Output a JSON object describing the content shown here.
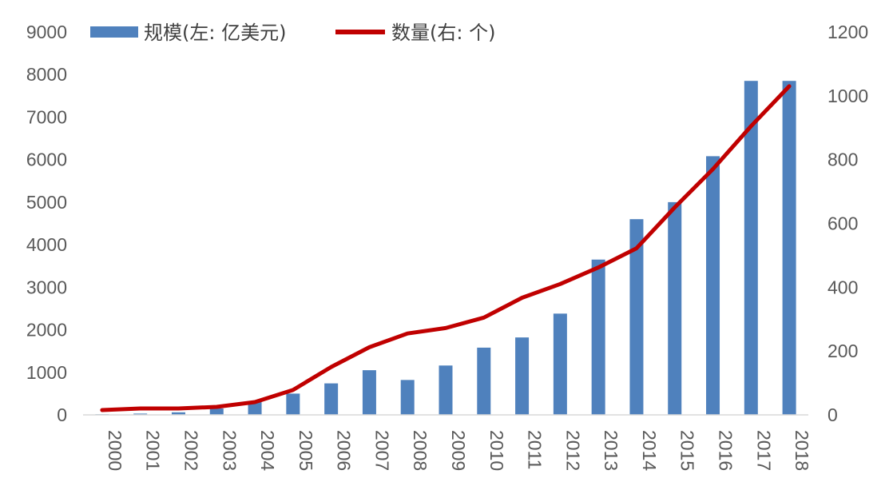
{
  "chart_data": {
    "type": "bar",
    "title": "",
    "xlabel": "",
    "ylabel": "",
    "categories": [
      "2000",
      "2001",
      "2002",
      "2003",
      "2004",
      "2005",
      "2006",
      "2007",
      "2008",
      "2009",
      "2010",
      "2011",
      "2012",
      "2013",
      "2014",
      "2015",
      "2016",
      "2017",
      "2018"
    ],
    "series": [
      {
        "name": "规模(左: 亿美元)",
        "type": "bar",
        "axis": "left",
        "color": "#4F81BD",
        "values": [
          15,
          30,
          60,
          150,
          300,
          500,
          740,
          1050,
          820,
          1160,
          1580,
          1820,
          2380,
          3650,
          4600,
          5000,
          6080,
          7850,
          7850
        ]
      },
      {
        "name": "数量(右: 个)",
        "type": "line",
        "axis": "right",
        "color": "#C00000",
        "values": [
          15,
          20,
          20,
          25,
          40,
          78,
          150,
          212,
          255,
          272,
          305,
          367,
          410,
          462,
          522,
          650,
          770,
          905,
          1030
        ]
      }
    ],
    "y_left": {
      "min": 0,
      "max": 9000,
      "ticks": [
        "0",
        "1000",
        "2000",
        "3000",
        "4000",
        "5000",
        "6000",
        "7000",
        "8000",
        "9000"
      ]
    },
    "y_right": {
      "min": 0,
      "max": 1200,
      "ticks": [
        "0",
        "200",
        "400",
        "600",
        "800",
        "1000",
        "1200"
      ]
    },
    "grid": false,
    "legend_position": "top",
    "x_tick_rotation": "vertical"
  }
}
